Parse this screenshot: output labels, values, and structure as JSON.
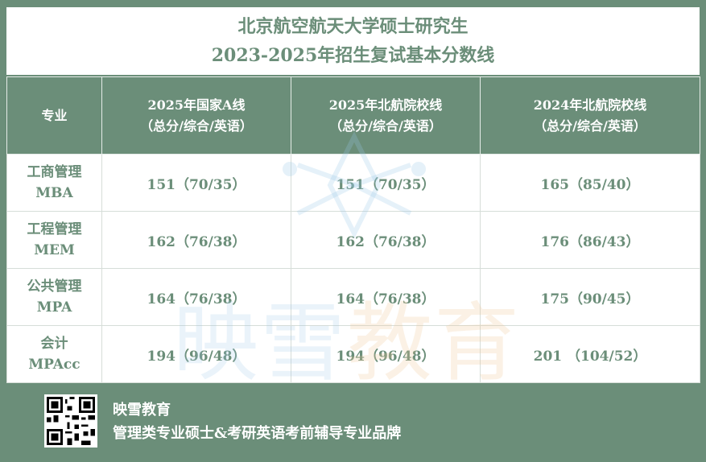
{
  "title": {
    "line1": "北京航空航天大学硕士研究生",
    "line2": "2023-2025年招生复试基本分数线"
  },
  "table": {
    "headers": [
      {
        "line1": "专业",
        "line2": ""
      },
      {
        "line1": "2025年国家A线",
        "line2": "（总分/综合/英语）"
      },
      {
        "line1": "2025年北航院校线",
        "line2": "（总分/综合/英语）"
      },
      {
        "line1": "2024年北航院校线",
        "line2": "（总分/综合/英语）"
      }
    ],
    "rows": [
      {
        "major": "工商管理",
        "code": "MBA",
        "c1": "151（70/35）",
        "c2": "151（70/35）",
        "c3": "165（85/40）"
      },
      {
        "major": "工程管理",
        "code": "MEM",
        "c1": "162（76/38）",
        "c2": "162（76/38）",
        "c3": "176（86/43）"
      },
      {
        "major": "公共管理",
        "code": "MPA",
        "c1": "164（76/38）",
        "c2": "164（76/38）",
        "c3": "175（90/45）"
      },
      {
        "major": "会计",
        "code": "MPAcc",
        "c1": "194（96/48）",
        "c2": "194（96/48）",
        "c3": "201 （104/52）"
      }
    ]
  },
  "watermark": {
    "part1": "映雪",
    "part2": "教育"
  },
  "footer": {
    "brand": "映雪教育",
    "slogan": "管理类专业硕士&考研英语考前辅导专业品牌"
  }
}
